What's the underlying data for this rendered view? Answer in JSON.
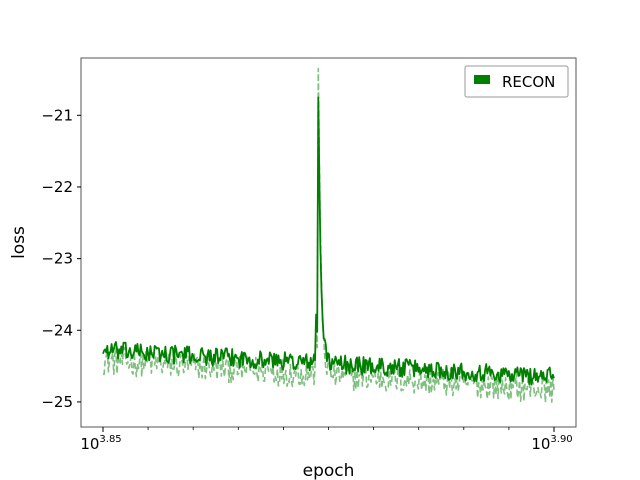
{
  "chart_data": {
    "type": "line",
    "xlabel": "epoch",
    "ylabel": "loss",
    "x_scale": "log",
    "x_range_log10": [
      3.85,
      3.9
    ],
    "x_ticks": [
      {
        "base": "10",
        "exp": "3.85",
        "log10": 3.85
      },
      {
        "base": "10",
        "exp": "3.90",
        "log10": 3.9
      }
    ],
    "ylim": [
      -25.35,
      -20.2
    ],
    "y_ticks": [
      -21,
      -22,
      -23,
      -24,
      -25
    ],
    "y_tick_labels": [
      "−21",
      "−22",
      "−23",
      "−24",
      "−25"
    ],
    "grid": false,
    "legend_position": "top-right",
    "series": [
      {
        "name": "RECON",
        "color": "#008000",
        "style": "solid",
        "alpha": 1.0,
        "x_log10_range": [
          3.85,
          3.9
        ],
        "n_points": 420,
        "baseline_start": -24.28,
        "baseline_end": -24.65,
        "noise_amplitude": 0.13,
        "spike_x_log10": 3.8739,
        "spike_peak": -20.75
      },
      {
        "name": "",
        "color": "#008000",
        "style": "dashed",
        "alpha": 0.5,
        "x_log10_range": [
          3.85,
          3.9
        ],
        "n_points": 420,
        "baseline_start": -24.42,
        "baseline_end": -24.82,
        "noise_amplitude": 0.2,
        "spike_x_log10": 3.8739,
        "spike_peak": -20.35
      }
    ],
    "legend": [
      {
        "label": "RECON",
        "color": "#008000"
      }
    ]
  }
}
